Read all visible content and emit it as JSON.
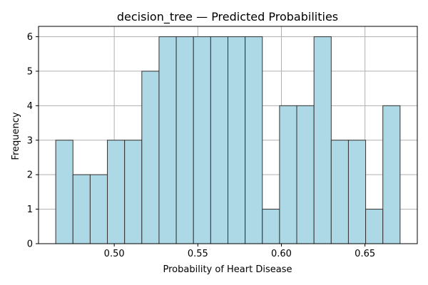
{
  "chart_data": {
    "type": "bar",
    "title": "decision_tree — Predicted Probabilities",
    "xlabel": "Probability of Heart Disease",
    "ylabel": "Frequency",
    "bins": [
      {
        "x0": 0.465,
        "x1": 0.4753,
        "count": 3
      },
      {
        "x0": 0.4753,
        "x1": 0.4856,
        "count": 2
      },
      {
        "x0": 0.4856,
        "x1": 0.4959,
        "count": 2
      },
      {
        "x0": 0.4959,
        "x1": 0.5062,
        "count": 3
      },
      {
        "x0": 0.5062,
        "x1": 0.5165,
        "count": 3
      },
      {
        "x0": 0.5165,
        "x1": 0.5268,
        "count": 5
      },
      {
        "x0": 0.5268,
        "x1": 0.5371,
        "count": 6
      },
      {
        "x0": 0.5371,
        "x1": 0.5474,
        "count": 6
      },
      {
        "x0": 0.5474,
        "x1": 0.5577,
        "count": 6
      },
      {
        "x0": 0.5577,
        "x1": 0.568,
        "count": 6
      },
      {
        "x0": 0.568,
        "x1": 0.5783,
        "count": 6
      },
      {
        "x0": 0.5783,
        "x1": 0.5886,
        "count": 6
      },
      {
        "x0": 0.5886,
        "x1": 0.5989,
        "count": 1
      },
      {
        "x0": 0.5989,
        "x1": 0.6092,
        "count": 4
      },
      {
        "x0": 0.6092,
        "x1": 0.6195,
        "count": 4
      },
      {
        "x0": 0.6195,
        "x1": 0.6298,
        "count": 6
      },
      {
        "x0": 0.6298,
        "x1": 0.6401,
        "count": 3
      },
      {
        "x0": 0.6401,
        "x1": 0.6504,
        "count": 3
      },
      {
        "x0": 0.6504,
        "x1": 0.6607,
        "count": 1
      },
      {
        "x0": 0.6607,
        "x1": 0.671,
        "count": 4
      }
    ],
    "xlim": [
      0.4547,
      0.6813
    ],
    "ylim": [
      0,
      6.3
    ],
    "xticks": [
      {
        "value": 0.5,
        "label": "0.50"
      },
      {
        "value": 0.55,
        "label": "0.55"
      },
      {
        "value": 0.6,
        "label": "0.60"
      },
      {
        "value": 0.65,
        "label": "0.65"
      }
    ],
    "yticks": [
      {
        "value": 0,
        "label": "0"
      },
      {
        "value": 1,
        "label": "1"
      },
      {
        "value": 2,
        "label": "2"
      },
      {
        "value": 3,
        "label": "3"
      },
      {
        "value": 4,
        "label": "4"
      },
      {
        "value": 5,
        "label": "5"
      },
      {
        "value": 6,
        "label": "6"
      }
    ],
    "grid": true,
    "colors": {
      "bar_fill": "#add8e6",
      "bar_edge": "#333333",
      "grid": "#b0b0b0",
      "axes": "#000000"
    }
  }
}
